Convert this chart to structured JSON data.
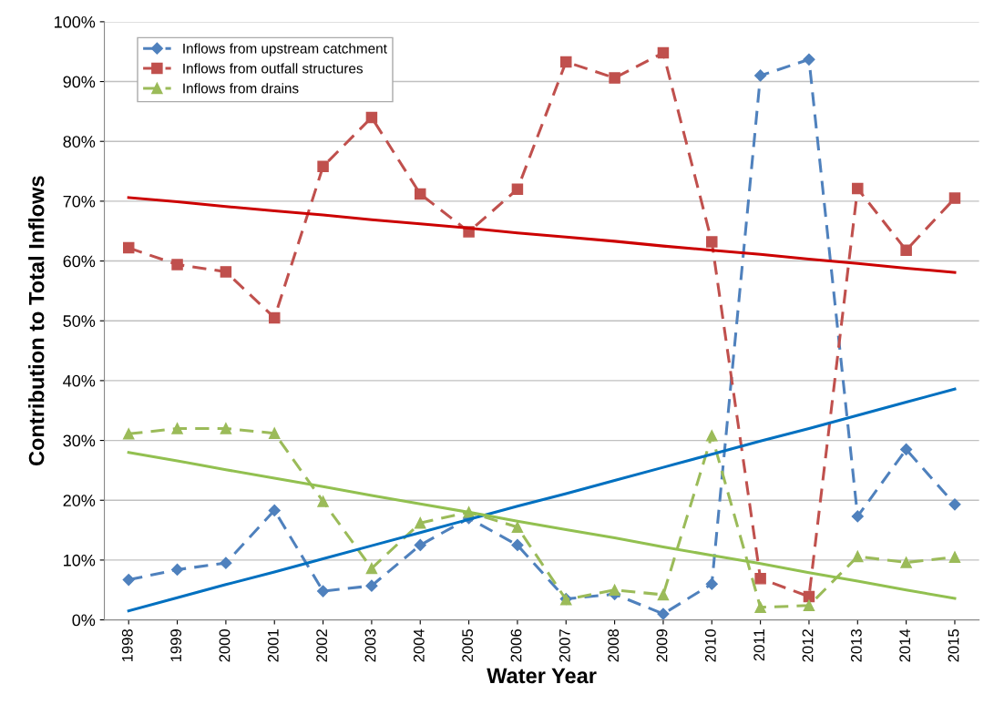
{
  "chart_data": {
    "type": "line",
    "xlabel": "Water Year",
    "ylabel": "Contribution to Total Inflows",
    "categories": [
      "1998",
      "1999",
      "2000",
      "2001",
      "2002",
      "2003",
      "2004",
      "2005",
      "2006",
      "2007",
      "2008",
      "2009",
      "2010",
      "2011",
      "2012",
      "2013",
      "2014",
      "2015"
    ],
    "series": [
      {
        "name": "Inflows from upstream catchment",
        "color": "#4f81bd",
        "marker": "diamond",
        "line_style": "dashed",
        "values": [
          6.7,
          8.4,
          9.5,
          18.3,
          4.8,
          5.7,
          12.5,
          17.0,
          12.5,
          3.5,
          4.3,
          1.0,
          6.0,
          91,
          93.7,
          17.3,
          28.5,
          19.3
        ]
      },
      {
        "name": "Inflows from outfall structures",
        "color": "#c0504d",
        "marker": "square",
        "line_style": "dashed",
        "values": [
          62.2,
          59.4,
          58.2,
          50.5,
          75.8,
          84,
          71.2,
          64.9,
          72.0,
          93.3,
          90.6,
          94.8,
          63.2,
          6.9,
          3.9,
          72.1,
          61.8,
          70.5
        ]
      },
      {
        "name": "Inflows from drains",
        "color": "#9bbb59",
        "marker": "triangle",
        "line_style": "dashed",
        "values": [
          31.1,
          32.0,
          32.0,
          31.2,
          19.8,
          8.6,
          16.2,
          18.0,
          15.5,
          3.4,
          5.0,
          4.2,
          30.8,
          2.1,
          2.4,
          10.6,
          9.6,
          10.5
        ]
      },
      {
        "color": "#0070c0",
        "marker": "none",
        "line_style": "solid",
        "values": [
          1.5,
          3.7,
          5.9,
          8.0,
          10.2,
          12.4,
          14.6,
          16.8,
          19.0,
          21.1,
          23.3,
          25.5,
          27.7,
          29.9,
          32.0,
          34.2,
          36.4,
          38.6
        ]
      },
      {
        "color": "#cc0000",
        "marker": "none",
        "line_style": "solid",
        "values": [
          70.6,
          69.9,
          69.1,
          68.4,
          67.7,
          66.9,
          66.2,
          65.5,
          64.7,
          64.0,
          63.3,
          62.5,
          61.8,
          61.1,
          60.3,
          59.6,
          58.8,
          58.1
        ]
      },
      {
        "color": "#92c050",
        "marker": "none",
        "line_style": "solid",
        "values": [
          28.0,
          26.6,
          25.1,
          23.7,
          22.3,
          20.8,
          19.4,
          18.0,
          16.5,
          15.1,
          13.7,
          12.2,
          10.8,
          9.4,
          7.9,
          6.5,
          5.0,
          3.6
        ]
      }
    ],
    "ylim": [
      0,
      100
    ],
    "yticks": [
      {
        "value": 0,
        "label": "0%"
      },
      {
        "value": 10,
        "label": "10%"
      },
      {
        "value": 20,
        "label": "20%"
      },
      {
        "value": 30,
        "label": "30%"
      },
      {
        "value": 40,
        "label": "40%"
      },
      {
        "value": 50,
        "label": "50%"
      },
      {
        "value": 60,
        "label": "60%"
      },
      {
        "value": 70,
        "label": "70%"
      },
      {
        "value": 80,
        "label": "80%"
      },
      {
        "value": 90,
        "label": "90%"
      },
      {
        "value": 100,
        "label": "100%"
      }
    ],
    "grid": "y",
    "legend": "top left"
  }
}
